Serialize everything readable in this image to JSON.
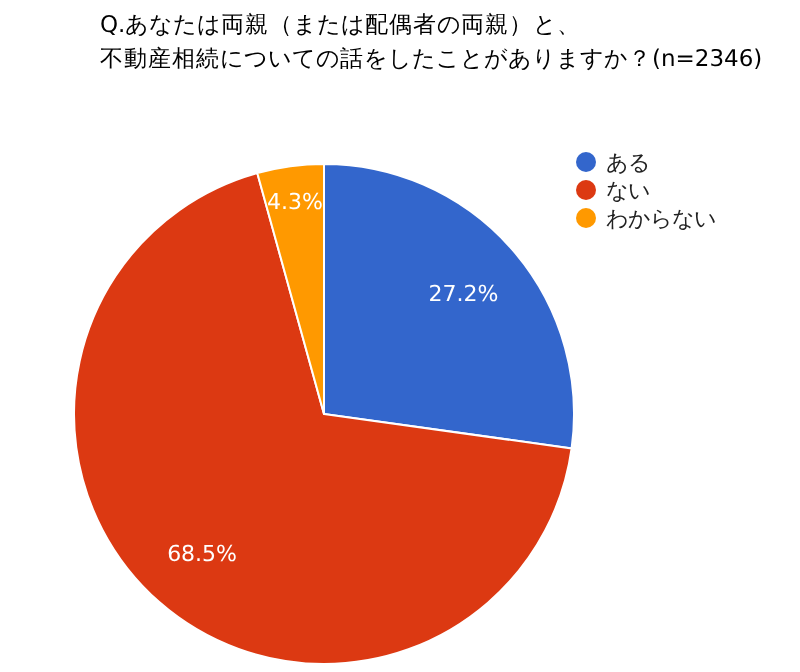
{
  "chart_data": {
    "type": "pie",
    "title": "Q.あなたは両親（または配偶者の両親）と、不動産相続についての話をしたことがありますか？(n=2346)",
    "categories": [
      "ある",
      "ない",
      "わからない"
    ],
    "values": [
      27.2,
      68.5,
      4.3
    ],
    "colors": [
      "#3366cc",
      "#dc3912",
      "#ff9900"
    ],
    "value_labels": [
      "27.2%",
      "68.5%",
      "4.3%"
    ],
    "legend": "top right"
  }
}
